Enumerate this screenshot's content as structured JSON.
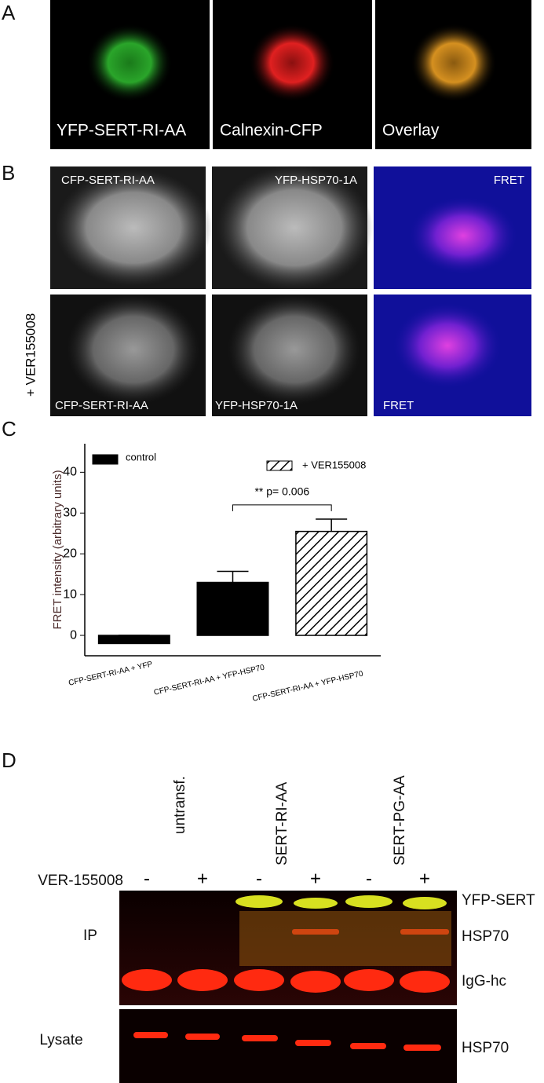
{
  "panel_labels": [
    "A",
    "B",
    "C",
    "D"
  ],
  "panel_a": {
    "captions": [
      "YFP-SERT-RI-AA",
      "Calnexin-CFP",
      "Overlay"
    ]
  },
  "panel_b": {
    "treatment": "+ VER155008",
    "rows": [
      [
        "CFP-SERT-RI-AA",
        "YFP-HSP70-1A",
        "FRET"
      ],
      [
        "CFP-SERT-RI-AA",
        "YFP-HSP70-1A",
        "FRET"
      ]
    ]
  },
  "chart_data": {
    "type": "bar",
    "y_label": "FRET intensity (arbitrary units)",
    "categories": [
      "CFP-SERT-RI-AA + YFP",
      "CFP-SERT-RI-AA + YFP-HSP70",
      "CFP-SERT-RI-AA + YFP-HSP70"
    ],
    "series": [
      {
        "name": "control",
        "color": "#000000",
        "values": [
          -2,
          13,
          null
        ],
        "errors": [
          2,
          2.7,
          null
        ]
      },
      {
        "name": "+ VER155008",
        "color": "#000000",
        "pattern": "hatch",
        "values": [
          null,
          null,
          25.5
        ],
        "errors": [
          null,
          null,
          3
        ]
      }
    ],
    "annotation": "**   p= 0.006",
    "ylim": [
      -5,
      47
    ],
    "yticks": [
      0,
      10,
      20,
      30,
      40
    ],
    "grid": false
  },
  "panel_d": {
    "groups": [
      "untransf.",
      "SERT-RI-AA",
      "SERT-PG-AA"
    ],
    "treatment": "VER-155008",
    "lanes": [
      "-",
      "+",
      "-",
      "+",
      "-",
      "+"
    ],
    "blots": [
      "IP",
      "Lysate"
    ],
    "bands": [
      "YFP-SERT",
      "HSP70",
      "IgG-hc",
      "HSP70"
    ]
  }
}
